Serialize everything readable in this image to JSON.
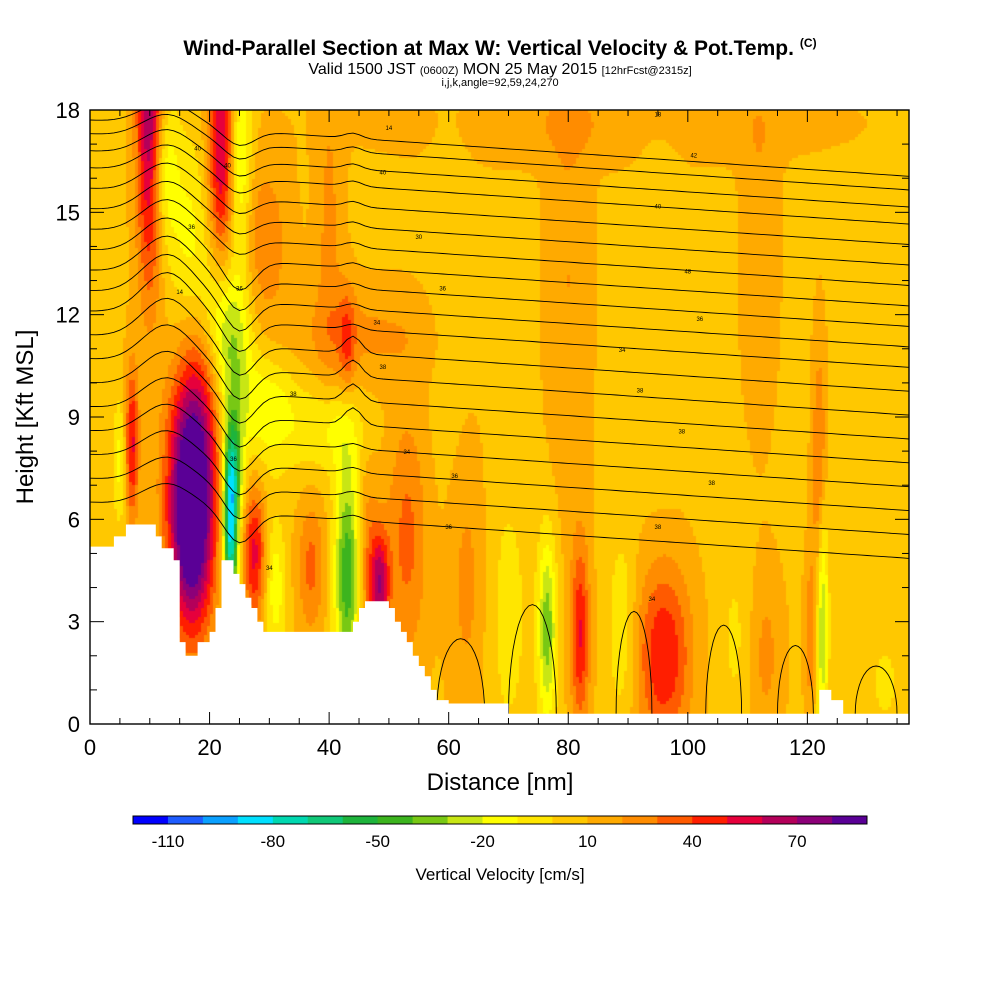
{
  "chart_data": {
    "type": "heatmap",
    "title": "Wind-Parallel Section at Max W: Vertical Velocity & Pot.Temp.",
    "title_mark": "(C)",
    "subtitle_parts": [
      "Valid 1500 JST",
      "(0600Z)",
      "MON 25 May 2015",
      "[12hrFcst@2315z]"
    ],
    "subtitle2": "i,j,k,angle=92,59,24,270",
    "xlabel": "Distance [nm]",
    "ylabel": "Height [Kft MSL]",
    "xlim": [
      0,
      137
    ],
    "ylim": [
      0,
      18
    ],
    "x_ticks": [
      "0",
      "20",
      "40",
      "60",
      "80",
      "100",
      "120"
    ],
    "y_ticks": [
      "0",
      "3",
      "6",
      "9",
      "12",
      "15",
      "18"
    ],
    "grid": false,
    "colorbar": {
      "label": "Vertical Velocity [cm/s]",
      "ticks": [
        "-110",
        "-80",
        "-50",
        "-20",
        "10",
        "40",
        "70"
      ],
      "levels": [
        -120,
        -110,
        -100,
        -90,
        -80,
        -70,
        -60,
        -50,
        -40,
        -30,
        -20,
        -10,
        0,
        10,
        20,
        30,
        40,
        50,
        60,
        70,
        80,
        90
      ],
      "colors": [
        "#0000ff",
        "#1e5cff",
        "#0aa0ff",
        "#00e0ff",
        "#00d8b0",
        "#10c878",
        "#1eb43c",
        "#3cb41e",
        "#78c814",
        "#c8e614",
        "#ffff00",
        "#ffe600",
        "#ffc800",
        "#ffaa00",
        "#ff8c00",
        "#ff5a00",
        "#ff1e00",
        "#e6003c",
        "#b4005a",
        "#8c0078",
        "#5a0096"
      ]
    },
    "terrain": [
      [
        0,
        5.2
      ],
      [
        4,
        5.2
      ],
      [
        4,
        5.5
      ],
      [
        6,
        5.5
      ],
      [
        6,
        5.85
      ],
      [
        11,
        5.85
      ],
      [
        11,
        5.5
      ],
      [
        12,
        5.5
      ],
      [
        12,
        5.15
      ],
      [
        14,
        5.15
      ],
      [
        14,
        4.8
      ],
      [
        15,
        4.8
      ],
      [
        15,
        2.4
      ],
      [
        16,
        2.4
      ],
      [
        16,
        2.0
      ],
      [
        18,
        2.0
      ],
      [
        18,
        2.4
      ],
      [
        20,
        2.4
      ],
      [
        20,
        2.7
      ],
      [
        21,
        2.7
      ],
      [
        21,
        3.4
      ],
      [
        22,
        3.4
      ],
      [
        22,
        4.8
      ],
      [
        24,
        4.8
      ],
      [
        24,
        4.4
      ],
      [
        25,
        4.4
      ],
      [
        25,
        4.1
      ],
      [
        26,
        4.1
      ],
      [
        26,
        3.7
      ],
      [
        27,
        3.7
      ],
      [
        27,
        3.4
      ],
      [
        28,
        3.4
      ],
      [
        28,
        3.0
      ],
      [
        29,
        3.0
      ],
      [
        29,
        2.7
      ],
      [
        44,
        2.7
      ],
      [
        44,
        3.0
      ],
      [
        45,
        3.0
      ],
      [
        45,
        3.4
      ],
      [
        46,
        3.4
      ],
      [
        46,
        3.6
      ],
      [
        50,
        3.6
      ],
      [
        50,
        3.4
      ],
      [
        51,
        3.4
      ],
      [
        51,
        3.0
      ],
      [
        52,
        3.0
      ],
      [
        52,
        2.7
      ],
      [
        53,
        2.7
      ],
      [
        53,
        2.4
      ],
      [
        54,
        2.4
      ],
      [
        54,
        2.0
      ],
      [
        55,
        2.0
      ],
      [
        55,
        1.7
      ],
      [
        56,
        1.7
      ],
      [
        56,
        1.4
      ],
      [
        57,
        1.4
      ],
      [
        57,
        1.0
      ],
      [
        58,
        1.0
      ],
      [
        58,
        0.7
      ],
      [
        60,
        0.7
      ],
      [
        60,
        0.6
      ],
      [
        70,
        0.6
      ],
      [
        70,
        0.3
      ],
      [
        122,
        0.3
      ],
      [
        122,
        1.0
      ],
      [
        124,
        1.0
      ],
      [
        124,
        0.7
      ],
      [
        126,
        0.7
      ],
      [
        126,
        0.3
      ],
      [
        137,
        0.3
      ]
    ],
    "theta_labels": [
      {
        "text": "40",
        "x": 18,
        "y": 16.9
      },
      {
        "text": "40",
        "x": 23,
        "y": 16.4
      },
      {
        "text": "36",
        "x": 17,
        "y": 14.6
      },
      {
        "text": "14",
        "x": 50,
        "y": 17.5
      },
      {
        "text": "40",
        "x": 49,
        "y": 16.2
      },
      {
        "text": "30",
        "x": 55,
        "y": 14.3
      },
      {
        "text": "18",
        "x": 95,
        "y": 17.9
      },
      {
        "text": "42",
        "x": 101,
        "y": 16.7
      },
      {
        "text": "40",
        "x": 95,
        "y": 15.2
      },
      {
        "text": "48",
        "x": 100,
        "y": 13.3
      },
      {
        "text": "36",
        "x": 102,
        "y": 11.9
      },
      {
        "text": "14",
        "x": 15,
        "y": 12.7
      },
      {
        "text": "36",
        "x": 25,
        "y": 12.8
      },
      {
        "text": "36",
        "x": 59,
        "y": 12.8
      },
      {
        "text": "34",
        "x": 48,
        "y": 11.8
      },
      {
        "text": "34",
        "x": 89,
        "y": 11.0
      },
      {
        "text": "38",
        "x": 92,
        "y": 9.8
      },
      {
        "text": "38",
        "x": 99,
        "y": 8.6
      },
      {
        "text": "38",
        "x": 34,
        "y": 9.7
      },
      {
        "text": "38",
        "x": 49,
        "y": 10.5
      },
      {
        "text": "34",
        "x": 53,
        "y": 8.0
      },
      {
        "text": "36",
        "x": 24,
        "y": 7.8
      },
      {
        "text": "36",
        "x": 61,
        "y": 7.3
      },
      {
        "text": "38",
        "x": 104,
        "y": 7.1
      },
      {
        "text": "36",
        "x": 60,
        "y": 5.8
      },
      {
        "text": "38",
        "x": 95,
        "y": 5.8
      },
      {
        "text": "34",
        "x": 30,
        "y": 4.6
      },
      {
        "text": "34",
        "x": 94,
        "y": 3.7
      }
    ],
    "w_features": [
      {
        "x": 10,
        "y": 17.5,
        "sx": 1.5,
        "sy": 3.2,
        "w": 70
      },
      {
        "x": 22,
        "y": 17.0,
        "sx": 1.6,
        "sy": 2.8,
        "w": 55
      },
      {
        "x": 12,
        "y": 16.3,
        "sx": 1.8,
        "sy": 1.5,
        "w": -30
      },
      {
        "x": 25,
        "y": 16.5,
        "sx": 1.4,
        "sy": 2.3,
        "w": -35
      },
      {
        "x": 17,
        "y": 14.0,
        "sx": 2.6,
        "sy": 2.1,
        "w": -25
      },
      {
        "x": 21,
        "y": 12.0,
        "sx": 2.6,
        "sy": 1.6,
        "w": -35
      },
      {
        "x": 24,
        "y": 10.8,
        "sx": 2.4,
        "sy": 1.6,
        "w": -30
      },
      {
        "x": 30,
        "y": 9.2,
        "sx": 3.5,
        "sy": 1.2,
        "w": -25
      },
      {
        "x": 40,
        "y": 8.6,
        "sx": 4.0,
        "sy": 0.9,
        "w": -20
      },
      {
        "x": 19,
        "y": 11.3,
        "sx": 2.5,
        "sy": 2.2,
        "w": 30
      },
      {
        "x": 29,
        "y": 14.2,
        "sx": 3.0,
        "sy": 1.7,
        "w": 20
      },
      {
        "x": 17,
        "y": 5.6,
        "sx": 2.6,
        "sy": 2.1,
        "w": 90
      },
      {
        "x": 17,
        "y": 8.2,
        "sx": 2.9,
        "sy": 1.9,
        "w": 45
      },
      {
        "x": 23.5,
        "y": 5.6,
        "sx": 0.9,
        "sy": 1.7,
        "w": -90
      },
      {
        "x": 24,
        "y": 7.6,
        "sx": 1.2,
        "sy": 1.2,
        "w": -45
      },
      {
        "x": 7,
        "y": 8.2,
        "sx": 0.8,
        "sy": 1.6,
        "w": 45
      },
      {
        "x": 5,
        "y": 7.7,
        "sx": 0.8,
        "sy": 1.3,
        "w": -22
      },
      {
        "x": 27.5,
        "y": 5.0,
        "sx": 1.3,
        "sy": 1.4,
        "w": 45
      },
      {
        "x": 31,
        "y": 4.0,
        "sx": 1.2,
        "sy": 1.4,
        "w": -25
      },
      {
        "x": 37,
        "y": 4.6,
        "sx": 1.6,
        "sy": 1.4,
        "w": 25
      },
      {
        "x": 43,
        "y": 4.4,
        "sx": 1.5,
        "sy": 2.4,
        "w": -55
      },
      {
        "x": 46.5,
        "y": 4.7,
        "sx": 1.2,
        "sy": 2.0,
        "w": 20
      },
      {
        "x": 48.5,
        "y": 4.1,
        "sx": 1.1,
        "sy": 1.1,
        "w": 55
      },
      {
        "x": 53,
        "y": 5.4,
        "sx": 2.4,
        "sy": 2.6,
        "w": 25
      },
      {
        "x": 63,
        "y": 4.1,
        "sx": 2.2,
        "sy": 2.8,
        "w": 15
      },
      {
        "x": 70,
        "y": 3.2,
        "sx": 2.5,
        "sy": 3.0,
        "w": -12
      },
      {
        "x": 76.5,
        "y": 2.8,
        "sx": 1.1,
        "sy": 1.9,
        "w": -45
      },
      {
        "x": 82,
        "y": 2.6,
        "sx": 1.1,
        "sy": 1.9,
        "w": 42
      },
      {
        "x": 89,
        "y": 2.8,
        "sx": 1.6,
        "sy": 1.9,
        "w": -18
      },
      {
        "x": 96,
        "y": 2.0,
        "sx": 3.2,
        "sy": 1.9,
        "w": 42
      },
      {
        "x": 108,
        "y": 2.5,
        "sx": 2.0,
        "sy": 2.0,
        "w": -10
      },
      {
        "x": 113,
        "y": 2.0,
        "sx": 2.0,
        "sy": 1.8,
        "w": 15
      },
      {
        "x": 122,
        "y": 7.2,
        "sx": 0.8,
        "sy": 2.6,
        "w": 28
      },
      {
        "x": 122.5,
        "y": 3.2,
        "sx": 0.7,
        "sy": 2.5,
        "w": -42
      },
      {
        "x": 120.5,
        "y": 2.6,
        "sx": 0.7,
        "sy": 1.6,
        "w": 20
      },
      {
        "x": 133,
        "y": 1.2,
        "sx": 2.2,
        "sy": 1.2,
        "w": -10
      },
      {
        "x": 43,
        "y": 11.2,
        "sx": 1.0,
        "sy": 1.1,
        "w": 25
      },
      {
        "x": 40,
        "y": 14.3,
        "sx": 1.6,
        "sy": 3.2,
        "w": 15
      },
      {
        "x": 60,
        "y": 14.0,
        "sx": 2.2,
        "sy": 4.0,
        "w": -8
      },
      {
        "x": 80,
        "y": 13.0,
        "sx": 2.5,
        "sy": 5.0,
        "w": 12
      },
      {
        "x": 95,
        "y": 14.0,
        "sx": 2.5,
        "sy": 4.0,
        "w": -8
      },
      {
        "x": 112,
        "y": 14.0,
        "sx": 2.0,
        "sy": 3.5,
        "w": 12
      },
      {
        "x": 45,
        "y": 11.4,
        "sx": 10.0,
        "sy": 1.0,
        "w": 14
      },
      {
        "x": 85,
        "y": 17.6,
        "sx": 25.0,
        "sy": 0.8,
        "w": 10
      }
    ]
  }
}
